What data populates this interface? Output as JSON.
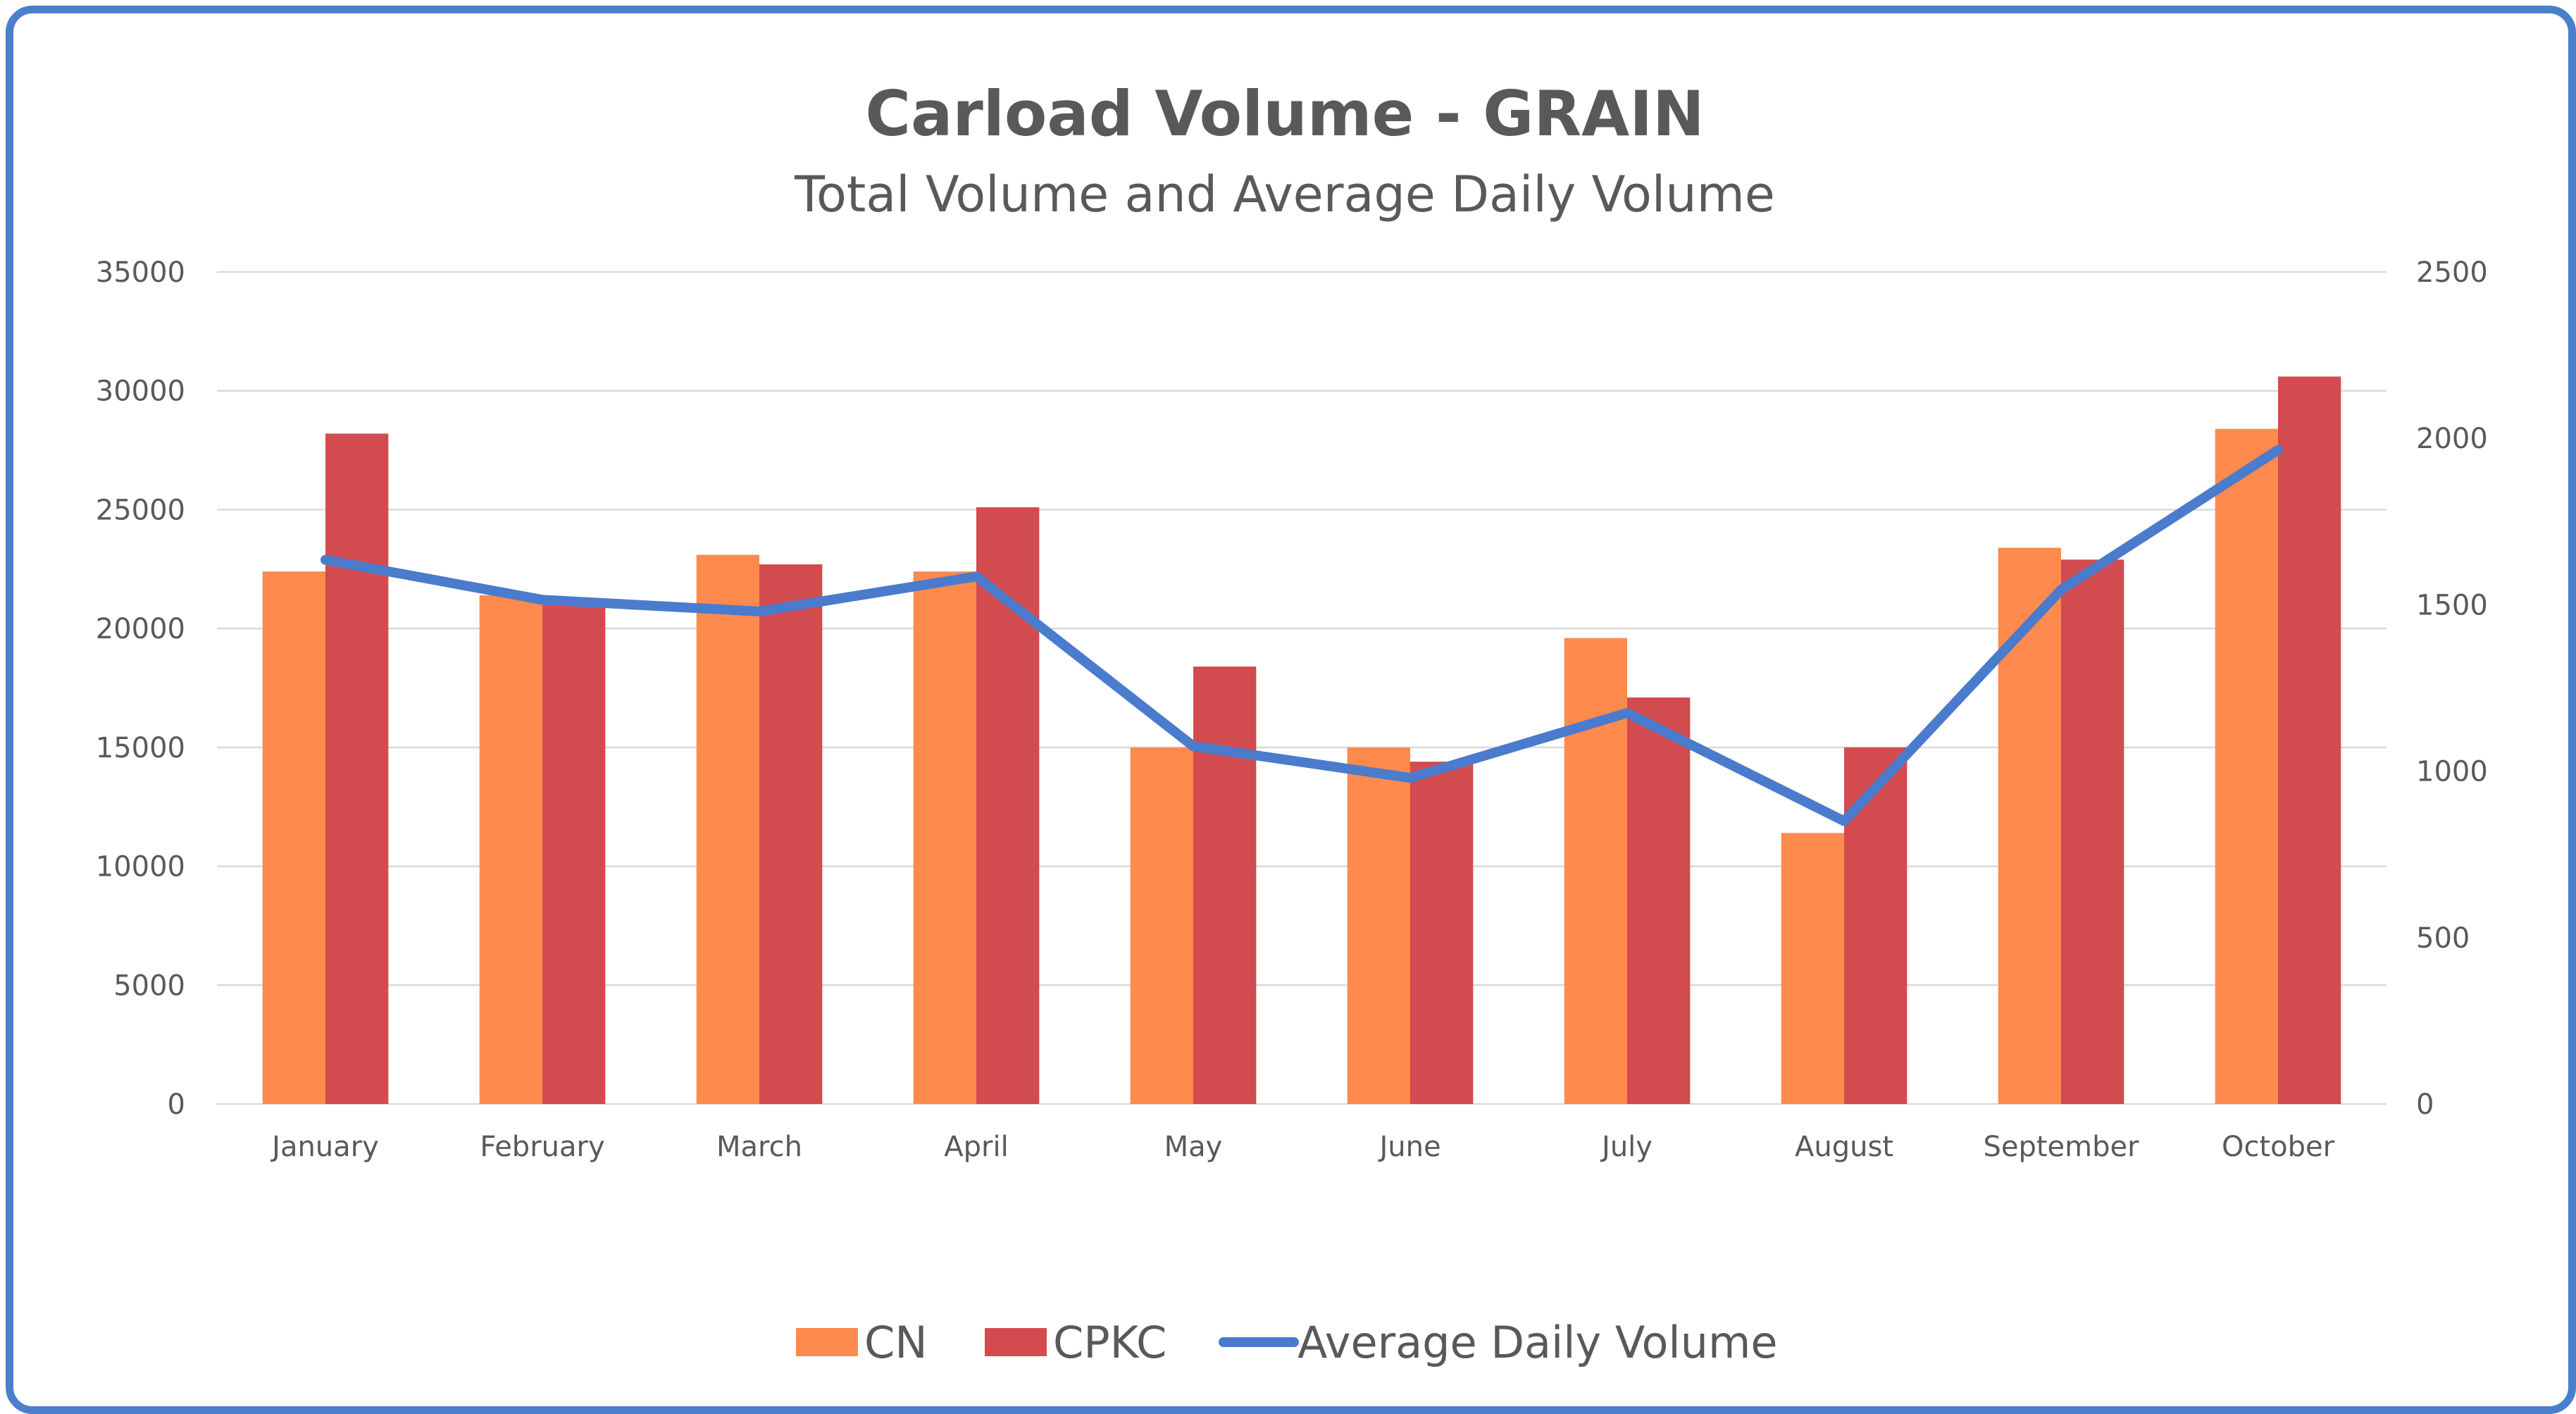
{
  "chart_data": {
    "type": "bar",
    "title": "Carload Volume - GRAIN",
    "subtitle": "Total Volume and Average Daily Volume",
    "categories": [
      "January",
      "February",
      "March",
      "April",
      "May",
      "June",
      "July",
      "August",
      "September",
      "October"
    ],
    "series": [
      {
        "name": "CN",
        "type": "bar",
        "axis": "left",
        "color": "#fe8a4e",
        "values": [
          22400,
          21400,
          23100,
          22400,
          15000,
          15000,
          19600,
          11400,
          23400,
          28400
        ]
      },
      {
        "name": "CPKC",
        "type": "bar",
        "axis": "left",
        "color": "#d24b4e",
        "values": [
          28200,
          21000,
          22700,
          25100,
          18400,
          14400,
          17100,
          15000,
          22900,
          30600
        ]
      },
      {
        "name": "Average Daily Volume",
        "type": "line",
        "axis": "right",
        "color": "#4a7bcd",
        "values": [
          1635,
          1515,
          1480,
          1585,
          1075,
          980,
          1175,
          850,
          1545,
          1965
        ]
      }
    ],
    "left_axis": {
      "ticks": [
        "0",
        "5000",
        "10000",
        "15000",
        "20000",
        "25000",
        "30000",
        "35000"
      ],
      "ylim": [
        0,
        35000
      ]
    },
    "right_axis": {
      "ticks": [
        "0",
        "500",
        "1000",
        "1500",
        "2000",
        "2500"
      ],
      "ylim": [
        0,
        2500
      ]
    },
    "grid": true,
    "legend_placement": "bottom"
  }
}
